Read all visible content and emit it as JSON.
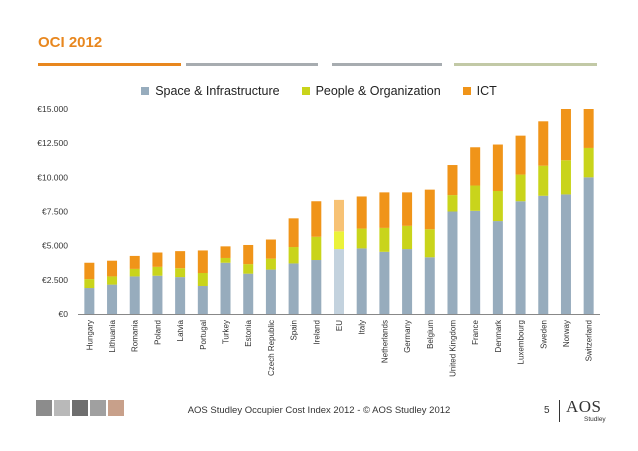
{
  "slide": {
    "title": "OCI 2012",
    "footer": "AOS Studley Occupier Cost Index 2012  -  © AOS Studley 2012",
    "page_number": "5",
    "logo_text": "AOS",
    "logo_subtext": "Studley"
  },
  "colors": {
    "accent": "#e8871e",
    "rule_gray": "#a7acb0",
    "rule_green": "#c2c9a6",
    "space": "#97acbd",
    "people": "#c9d41b",
    "ict": "#f09419",
    "eu_space": "#c3d2de",
    "eu_people": "#ebf23a",
    "eu_ict": "#f7c275",
    "axis": "#888888"
  },
  "chart_data": {
    "type": "bar",
    "stacked": true,
    "categories": [
      "Hungary",
      "Lithuania",
      "Romania",
      "Poland",
      "Latvia",
      "Portugal",
      "Turkey",
      "Estonia",
      "Czech Republic",
      "Spain",
      "Ireland",
      "EU",
      "Italy",
      "Netherlands",
      "Germany",
      "Belgium",
      "United Kingdom",
      "France",
      "Denmark",
      "Luxembourg",
      "Sweden",
      "Norway",
      "Switzerland"
    ],
    "highlight_category": "EU",
    "series": [
      {
        "name": "Space & Infrastructure",
        "values": [
          1900,
          2150,
          2750,
          2800,
          2700,
          2050,
          3750,
          2950,
          3250,
          3700,
          3950,
          4750,
          4800,
          4550,
          4750,
          4150,
          7500,
          7550,
          6800,
          8250,
          8650,
          8750,
          10000
        ]
      },
      {
        "name": "People & Organization",
        "values": [
          650,
          600,
          550,
          650,
          650,
          950,
          350,
          700,
          800,
          1200,
          1700,
          1300,
          1450,
          1750,
          1700,
          2050,
          1200,
          1850,
          2200,
          1950,
          2200,
          2500,
          2150
        ]
      },
      {
        "name": "ICT",
        "values": [
          1200,
          1150,
          950,
          1050,
          1250,
          1650,
          850,
          1400,
          1400,
          2100,
          2600,
          2300,
          2350,
          2600,
          2450,
          2900,
          2200,
          2800,
          3400,
          2850,
          3250,
          3750,
          2850
        ]
      }
    ],
    "ylim": [
      0,
      15000
    ],
    "yticks": [
      0,
      2500,
      5000,
      7500,
      10000,
      12500,
      15000
    ],
    "ytick_labels": [
      "€0",
      "€2.500",
      "€5.000",
      "€7.500",
      "€10.000",
      "€12.500",
      "€15.000"
    ],
    "legend_position": "top-center",
    "grid": false
  }
}
